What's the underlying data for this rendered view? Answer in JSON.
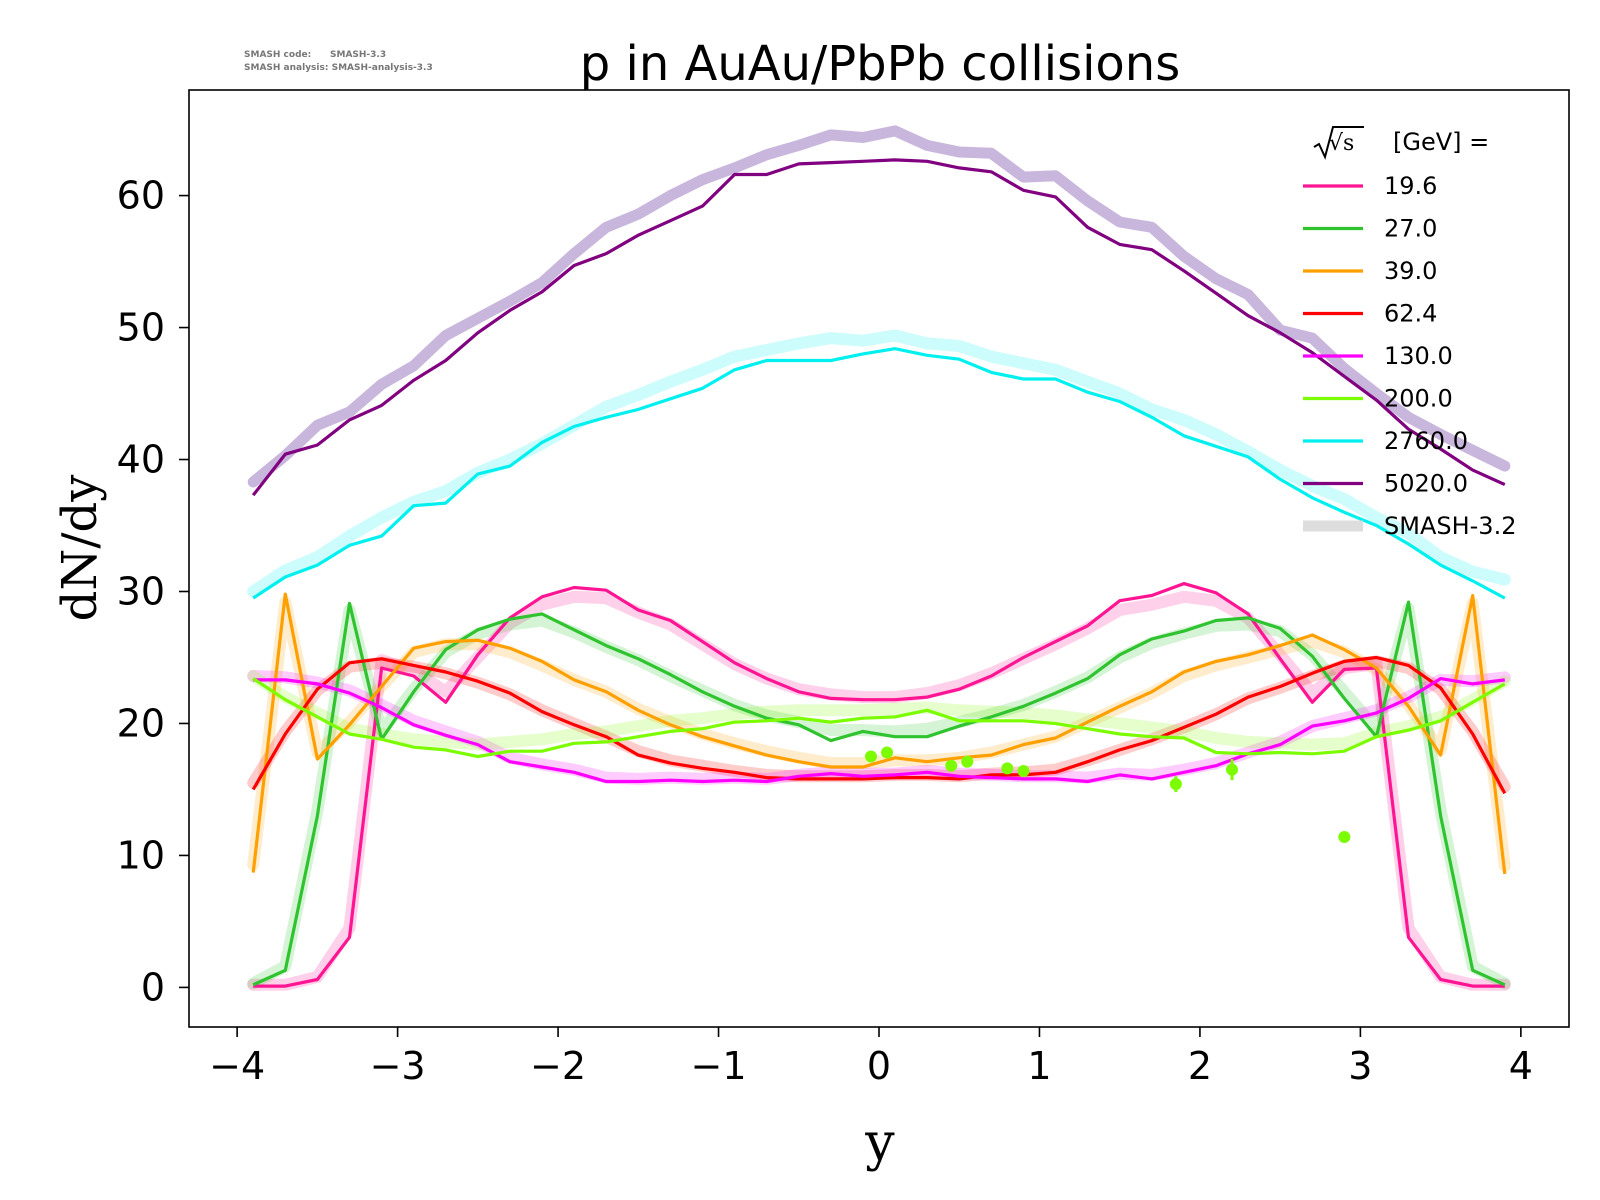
{
  "meta": {
    "code_line": "SMASH code:      SMASH-3.3",
    "analysis_line": "SMASH analysis: SMASH-analysis-3.3"
  },
  "chart_data": {
    "type": "line",
    "title": "p in AuAu/PbPb collisions",
    "xlabel": "y",
    "ylabel": "dN/dy",
    "xlim": [
      -4.3,
      4.3
    ],
    "ylim": [
      -3,
      68
    ],
    "xticks": [
      -4,
      -3,
      -2,
      -1,
      0,
      1,
      2,
      3,
      4
    ],
    "xtick_labels": [
      "−4",
      "−3",
      "−2",
      "−1",
      "0",
      "1",
      "2",
      "3",
      "4"
    ],
    "yticks": [
      0,
      10,
      20,
      30,
      40,
      50,
      60
    ],
    "ytick_labels": [
      "0",
      "10",
      "20",
      "30",
      "40",
      "50",
      "60"
    ],
    "grid": false,
    "legend_title_root": "√s",
    "legend_title_rest": "[GeV] =",
    "legend_position": "top-right",
    "reference_label": "SMASH-3.2",
    "x": [
      -3.9,
      -3.7,
      -3.5,
      -3.3,
      -3.1,
      -2.9,
      -2.7,
      -2.5,
      -2.3,
      -2.1,
      -1.9,
      -1.7,
      -1.5,
      -1.3,
      -1.1,
      -0.9,
      -0.7,
      -0.5,
      -0.3,
      -0.1,
      0.1,
      0.3,
      0.5,
      0.7,
      0.9,
      1.1,
      1.3,
      1.5,
      1.7,
      1.9,
      2.1,
      2.3,
      2.5,
      2.7,
      2.9,
      3.1,
      3.3,
      3.5,
      3.7,
      3.9
    ],
    "series": [
      {
        "name": "19.6",
        "color": "#ff1493",
        "values": [
          0.1,
          0.1,
          0.6,
          3.8,
          24.2,
          23.6,
          21.6,
          25.2,
          28.0,
          29.6,
          30.3,
          30.1,
          28.6,
          27.8,
          26.2,
          24.6,
          23.4,
          22.4,
          21.9,
          21.8,
          21.8,
          22.0,
          22.6,
          23.6,
          25.0,
          26.2,
          27.4,
          29.3,
          29.7,
          30.6,
          29.9,
          28.3,
          24.9,
          21.6,
          24.1,
          24.2,
          3.8,
          0.6,
          0.1,
          0.1
        ],
        "ref": [
          0.2,
          0.2,
          0.8,
          4.5,
          24.8,
          24.0,
          22.4,
          25.0,
          27.6,
          29.0,
          29.6,
          29.5,
          28.4,
          27.5,
          26.0,
          24.5,
          23.4,
          22.6,
          22.2,
          22.0,
          22.0,
          22.3,
          22.9,
          23.8,
          24.9,
          26.0,
          27.2,
          28.6,
          29.0,
          29.6,
          29.3,
          28.0,
          25.2,
          22.3,
          24.2,
          24.5,
          4.5,
          0.8,
          0.2,
          0.2
        ]
      },
      {
        "name": "27.0",
        "color": "#2fc42f",
        "values": [
          0.2,
          1.3,
          13.0,
          29.1,
          18.8,
          22.4,
          25.6,
          27.1,
          27.9,
          28.3,
          27.1,
          25.9,
          24.9,
          23.7,
          22.4,
          21.3,
          20.4,
          19.9,
          18.7,
          19.4,
          19.0,
          19.0,
          19.8,
          20.5,
          21.3,
          22.3,
          23.4,
          25.2,
          26.4,
          27.0,
          27.8,
          28.0,
          27.2,
          25.1,
          21.9,
          19.0,
          29.2,
          13.0,
          1.3,
          0.2
        ],
        "ref": [
          0.3,
          1.6,
          13.4,
          28.6,
          19.4,
          22.6,
          25.4,
          26.8,
          27.5,
          27.8,
          26.9,
          25.8,
          24.8,
          23.6,
          22.5,
          21.4,
          20.6,
          20.1,
          19.5,
          19.5,
          19.4,
          19.6,
          20.1,
          20.7,
          21.4,
          22.4,
          23.5,
          25.0,
          26.1,
          26.8,
          27.4,
          27.5,
          27.0,
          25.2,
          22.4,
          19.6,
          28.7,
          13.4,
          1.6,
          0.3
        ]
      },
      {
        "name": "39.0",
        "color": "#ff9f00",
        "values": [
          8.7,
          29.8,
          17.3,
          19.9,
          22.8,
          25.7,
          26.2,
          26.3,
          25.7,
          24.7,
          23.3,
          22.4,
          21.0,
          19.9,
          19.0,
          18.3,
          17.6,
          17.1,
          16.7,
          16.7,
          17.4,
          17.1,
          17.4,
          17.6,
          18.4,
          18.9,
          20.1,
          21.3,
          22.4,
          23.9,
          24.7,
          25.2,
          25.9,
          26.7,
          25.6,
          24.2,
          21.3,
          17.6,
          29.7,
          8.6
        ],
        "ref": [
          9.3,
          29.2,
          17.8,
          20.1,
          22.8,
          25.4,
          26.0,
          26.0,
          25.4,
          24.4,
          23.3,
          22.4,
          21.1,
          20.1,
          19.2,
          18.5,
          17.9,
          17.4,
          17.0,
          17.0,
          17.2,
          17.2,
          17.4,
          17.8,
          18.4,
          19.0,
          20.1,
          21.2,
          22.3,
          23.6,
          24.4,
          25.0,
          25.6,
          26.2,
          25.4,
          24.1,
          21.4,
          18.0,
          29.1,
          9.2
        ]
      },
      {
        "name": "62.4",
        "color": "#ff0000",
        "values": [
          15.0,
          19.2,
          22.6,
          24.6,
          24.9,
          24.4,
          23.9,
          23.2,
          22.3,
          20.9,
          19.9,
          19.0,
          17.6,
          17.0,
          16.6,
          16.3,
          15.9,
          15.8,
          15.8,
          15.8,
          15.9,
          15.9,
          15.8,
          16.1,
          16.1,
          16.3,
          17.1,
          18.0,
          18.7,
          19.7,
          20.7,
          22.0,
          22.8,
          23.8,
          24.7,
          25.0,
          24.4,
          22.7,
          19.2,
          14.7
        ],
        "ref": [
          15.5,
          19.4,
          22.5,
          24.3,
          24.6,
          24.3,
          23.8,
          23.1,
          22.2,
          21.0,
          20.0,
          19.0,
          17.9,
          17.2,
          16.8,
          16.4,
          16.1,
          16.0,
          16.0,
          16.0,
          16.1,
          16.1,
          16.0,
          16.2,
          16.3,
          16.5,
          17.2,
          18.0,
          18.8,
          19.7,
          20.7,
          21.9,
          22.7,
          23.6,
          24.4,
          24.7,
          24.2,
          22.6,
          19.4,
          15.2
        ]
      },
      {
        "name": "130.0",
        "color": "#ff00ff",
        "values": [
          23.3,
          23.3,
          23.0,
          22.3,
          21.2,
          19.9,
          19.1,
          18.4,
          17.1,
          16.7,
          16.3,
          15.6,
          15.6,
          15.7,
          15.6,
          15.7,
          15.6,
          16.0,
          16.2,
          16.0,
          16.1,
          16.3,
          16.0,
          15.9,
          15.8,
          15.8,
          15.6,
          16.1,
          15.8,
          16.3,
          16.8,
          17.7,
          18.4,
          19.8,
          20.2,
          20.8,
          21.9,
          23.4,
          23.0,
          23.3
        ],
        "ref": [
          23.6,
          23.5,
          23.1,
          22.5,
          21.4,
          20.2,
          19.4,
          18.6,
          17.4,
          16.9,
          16.5,
          15.9,
          15.8,
          15.9,
          15.8,
          15.9,
          15.8,
          16.1,
          16.3,
          16.2,
          16.2,
          16.4,
          16.2,
          16.1,
          16.0,
          16.0,
          15.9,
          16.2,
          16.1,
          16.5,
          17.0,
          17.8,
          18.6,
          19.8,
          20.4,
          21.0,
          22.0,
          23.3,
          23.2,
          23.5
        ]
      },
      {
        "name": "200.0",
        "color": "#7cfc00",
        "values": [
          23.4,
          21.8,
          20.5,
          19.2,
          18.8,
          18.2,
          18.0,
          17.5,
          17.9,
          17.9,
          18.5,
          18.6,
          19.0,
          19.4,
          19.6,
          20.1,
          20.2,
          20.4,
          20.1,
          20.4,
          20.5,
          21.0,
          20.2,
          20.2,
          20.2,
          20.0,
          19.6,
          19.2,
          19.0,
          18.9,
          17.8,
          17.7,
          17.8,
          17.7,
          17.9,
          19.0,
          19.5,
          20.2,
          21.6,
          23.0
        ],
        "ref": [
          23.6,
          22.0,
          20.8,
          19.6,
          19.2,
          18.8,
          18.6,
          18.4,
          18.6,
          18.8,
          19.2,
          19.4,
          19.8,
          20.2,
          20.4,
          20.7,
          20.9,
          21.0,
          21.0,
          21.0,
          21.1,
          21.2,
          21.0,
          20.9,
          20.8,
          20.6,
          20.3,
          20.0,
          19.7,
          19.4,
          18.9,
          18.6,
          18.5,
          18.4,
          18.5,
          19.3,
          19.8,
          20.5,
          21.8,
          23.2
        ]
      },
      {
        "name": "2760.0",
        "color": "#00f0f0",
        "values": [
          29.5,
          31.1,
          32.0,
          33.5,
          34.2,
          36.5,
          36.7,
          38.9,
          39.5,
          41.3,
          42.5,
          43.2,
          43.8,
          44.6,
          45.4,
          46.8,
          47.5,
          47.5,
          47.5,
          48.0,
          48.4,
          47.9,
          47.6,
          46.6,
          46.1,
          46.1,
          45.1,
          44.4,
          43.2,
          41.8,
          41.0,
          40.2,
          38.5,
          37.1,
          36.0,
          35.0,
          33.6,
          32.0,
          30.8,
          29.5
        ],
        "ref": [
          30.0,
          31.6,
          32.6,
          34.2,
          35.6,
          36.8,
          37.6,
          39.0,
          40.0,
          41.2,
          42.6,
          44.0,
          44.9,
          45.9,
          46.8,
          47.8,
          48.3,
          48.8,
          49.2,
          49.0,
          49.4,
          48.8,
          48.6,
          47.8,
          47.3,
          46.8,
          45.9,
          45.0,
          43.8,
          43.0,
          41.9,
          40.6,
          39.2,
          38.0,
          37.0,
          35.6,
          34.4,
          32.6,
          31.5,
          30.9
        ]
      },
      {
        "name": "5020.0",
        "color": "#800080",
        "values": [
          37.3,
          40.4,
          41.1,
          43.0,
          44.1,
          46.0,
          47.5,
          49.6,
          51.3,
          52.7,
          54.7,
          55.6,
          57.0,
          58.1,
          59.2,
          61.6,
          61.6,
          62.4,
          62.5,
          62.6,
          62.7,
          62.6,
          62.1,
          61.8,
          60.4,
          59.9,
          57.6,
          56.3,
          55.9,
          54.3,
          52.6,
          50.9,
          49.6,
          48.1,
          46.3,
          44.5,
          42.3,
          40.8,
          39.2,
          38.1
        ],
        "ref": [
          38.3,
          40.3,
          42.6,
          43.6,
          45.7,
          47.1,
          49.4,
          50.7,
          52.0,
          53.4,
          55.6,
          57.6,
          58.6,
          60.0,
          61.2,
          62.1,
          63.1,
          63.8,
          64.6,
          64.4,
          64.9,
          63.8,
          63.3,
          63.2,
          61.4,
          61.5,
          59.6,
          58.0,
          57.6,
          55.4,
          53.7,
          52.5,
          49.8,
          49.2,
          46.9,
          45.0,
          43.2,
          41.9,
          40.7,
          39.5
        ]
      }
    ],
    "experimental_points": {
      "color": "#7cfc00",
      "points": [
        {
          "x": -0.05,
          "y": 17.5
        },
        {
          "x": 0.05,
          "y": 17.8
        },
        {
          "x": 0.45,
          "y": 16.8
        },
        {
          "x": 0.55,
          "y": 17.1
        },
        {
          "x": 0.8,
          "y": 16.6
        },
        {
          "x": 0.9,
          "y": 16.4
        },
        {
          "x": 1.85,
          "y": 15.4,
          "err": 0.6
        },
        {
          "x": 2.2,
          "y": 16.5,
          "err": 0.8
        },
        {
          "x": 2.9,
          "y": 11.4
        }
      ]
    },
    "ref_opacity": 0.2,
    "purple_ref_color": "#c8b6dc"
  }
}
